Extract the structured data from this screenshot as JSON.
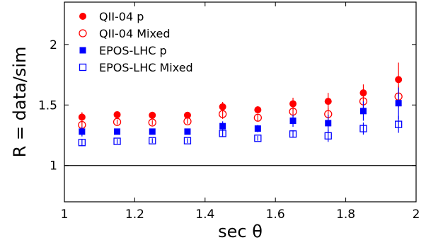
{
  "chart_data": {
    "type": "scatter",
    "xlabel": "sec θ",
    "ylabel": "R = data/sim",
    "xlim": [
      1,
      2
    ],
    "ylim": [
      0.7,
      2.35
    ],
    "xticks": [
      "1",
      "1.2",
      "1.4",
      "1.6",
      "1.8",
      "2"
    ],
    "yticks": [
      "1",
      "1.5",
      "2"
    ],
    "grid": false,
    "legend_position": "top-left",
    "reference_line_y": 1,
    "x": [
      1.05,
      1.15,
      1.25,
      1.35,
      1.45,
      1.55,
      1.65,
      1.75,
      1.85,
      1.95
    ],
    "series": [
      {
        "name": "QII-04 p",
        "marker": "filled-circle",
        "color": "#ff0000",
        "values": [
          1.4,
          1.42,
          1.415,
          1.415,
          1.485,
          1.46,
          1.51,
          1.53,
          1.6,
          1.71
        ],
        "errors": [
          0.04,
          0.02,
          0.02,
          0.02,
          0.04,
          0.03,
          0.05,
          0.07,
          0.07,
          0.14
        ]
      },
      {
        "name": "QII-04 Mixed",
        "marker": "open-circle",
        "color": "#ff0000",
        "values": [
          1.335,
          1.36,
          1.355,
          1.365,
          1.425,
          1.395,
          1.445,
          1.425,
          1.53,
          1.57
        ],
        "errors": [
          0.03,
          0.02,
          0.02,
          0.02,
          0.04,
          0.03,
          0.04,
          0.05,
          0.06,
          0.09
        ]
      },
      {
        "name": "EPOS-LHC p",
        "marker": "filled-square",
        "color": "#0000ff",
        "values": [
          1.28,
          1.28,
          1.28,
          1.28,
          1.325,
          1.305,
          1.37,
          1.35,
          1.45,
          1.515
        ],
        "errors": [
          0.04,
          0.02,
          0.02,
          0.02,
          0.04,
          0.03,
          0.05,
          0.07,
          0.08,
          0.13
        ]
      },
      {
        "name": "EPOS-LHC Mixed",
        "marker": "open-square",
        "color": "#0000ff",
        "values": [
          1.19,
          1.2,
          1.205,
          1.205,
          1.265,
          1.225,
          1.26,
          1.245,
          1.305,
          1.34
        ],
        "errors": [
          0.03,
          0.02,
          0.02,
          0.02,
          0.03,
          0.02,
          0.03,
          0.05,
          0.05,
          0.07
        ]
      }
    ]
  }
}
